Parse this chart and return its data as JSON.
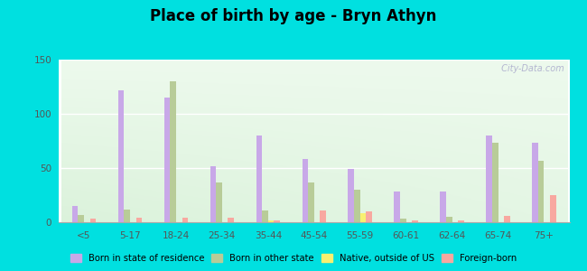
{
  "title": "Place of birth by age - Bryn Athyn",
  "categories": [
    "<5",
    "5-17",
    "18-24",
    "25-34",
    "35-44",
    "45-54",
    "55-59",
    "60-61",
    "62-64",
    "65-74",
    "75+"
  ],
  "series": {
    "Born in state of residence": [
      15,
      122,
      115,
      52,
      80,
      58,
      49,
      28,
      28,
      80,
      73
    ],
    "Born in other state": [
      7,
      12,
      130,
      37,
      11,
      37,
      30,
      3,
      5,
      73,
      57
    ],
    "Native, outside of US": [
      0,
      0,
      0,
      0,
      2,
      0,
      8,
      0,
      0,
      0,
      0
    ],
    "Foreign-born": [
      3,
      4,
      4,
      4,
      2,
      11,
      10,
      2,
      2,
      6,
      25
    ]
  },
  "colors": {
    "Born in state of residence": "#c8a8e8",
    "Born in other state": "#b8cc98",
    "Native, outside of US": "#f8f070",
    "Foreign-born": "#f8a8a0"
  },
  "ylim": [
    0,
    150
  ],
  "yticks": [
    0,
    50,
    100,
    150
  ],
  "outer_background": "#00e0e0",
  "watermark": " City-Data.com"
}
